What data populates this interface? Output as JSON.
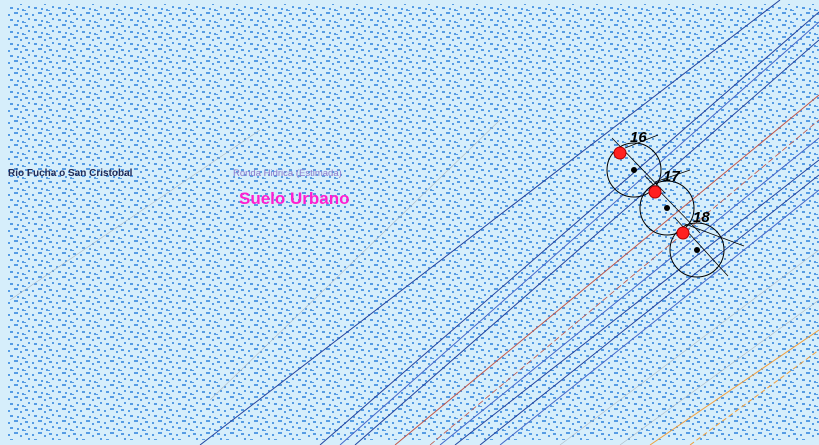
{
  "map": {
    "labels": {
      "river": "Rio Fucha o San Cristobal",
      "ronda": "Ronda Hidrica (Estimada)",
      "zone": "Suelo Urbano"
    },
    "points": [
      "16",
      "17",
      "18"
    ],
    "colors": {
      "background": "#d6eefb",
      "pattern": "#3f8ee0",
      "line_dark_blue": "#25459e",
      "line_blue": "#4668c8",
      "line_red": "#c0564a",
      "line_orange": "#f0a040",
      "line_gray": "#a8b0b8",
      "point_fill": "#ff2020",
      "label_zone": "#ff1fd0",
      "label_ronda": "#8a7acc"
    }
  }
}
